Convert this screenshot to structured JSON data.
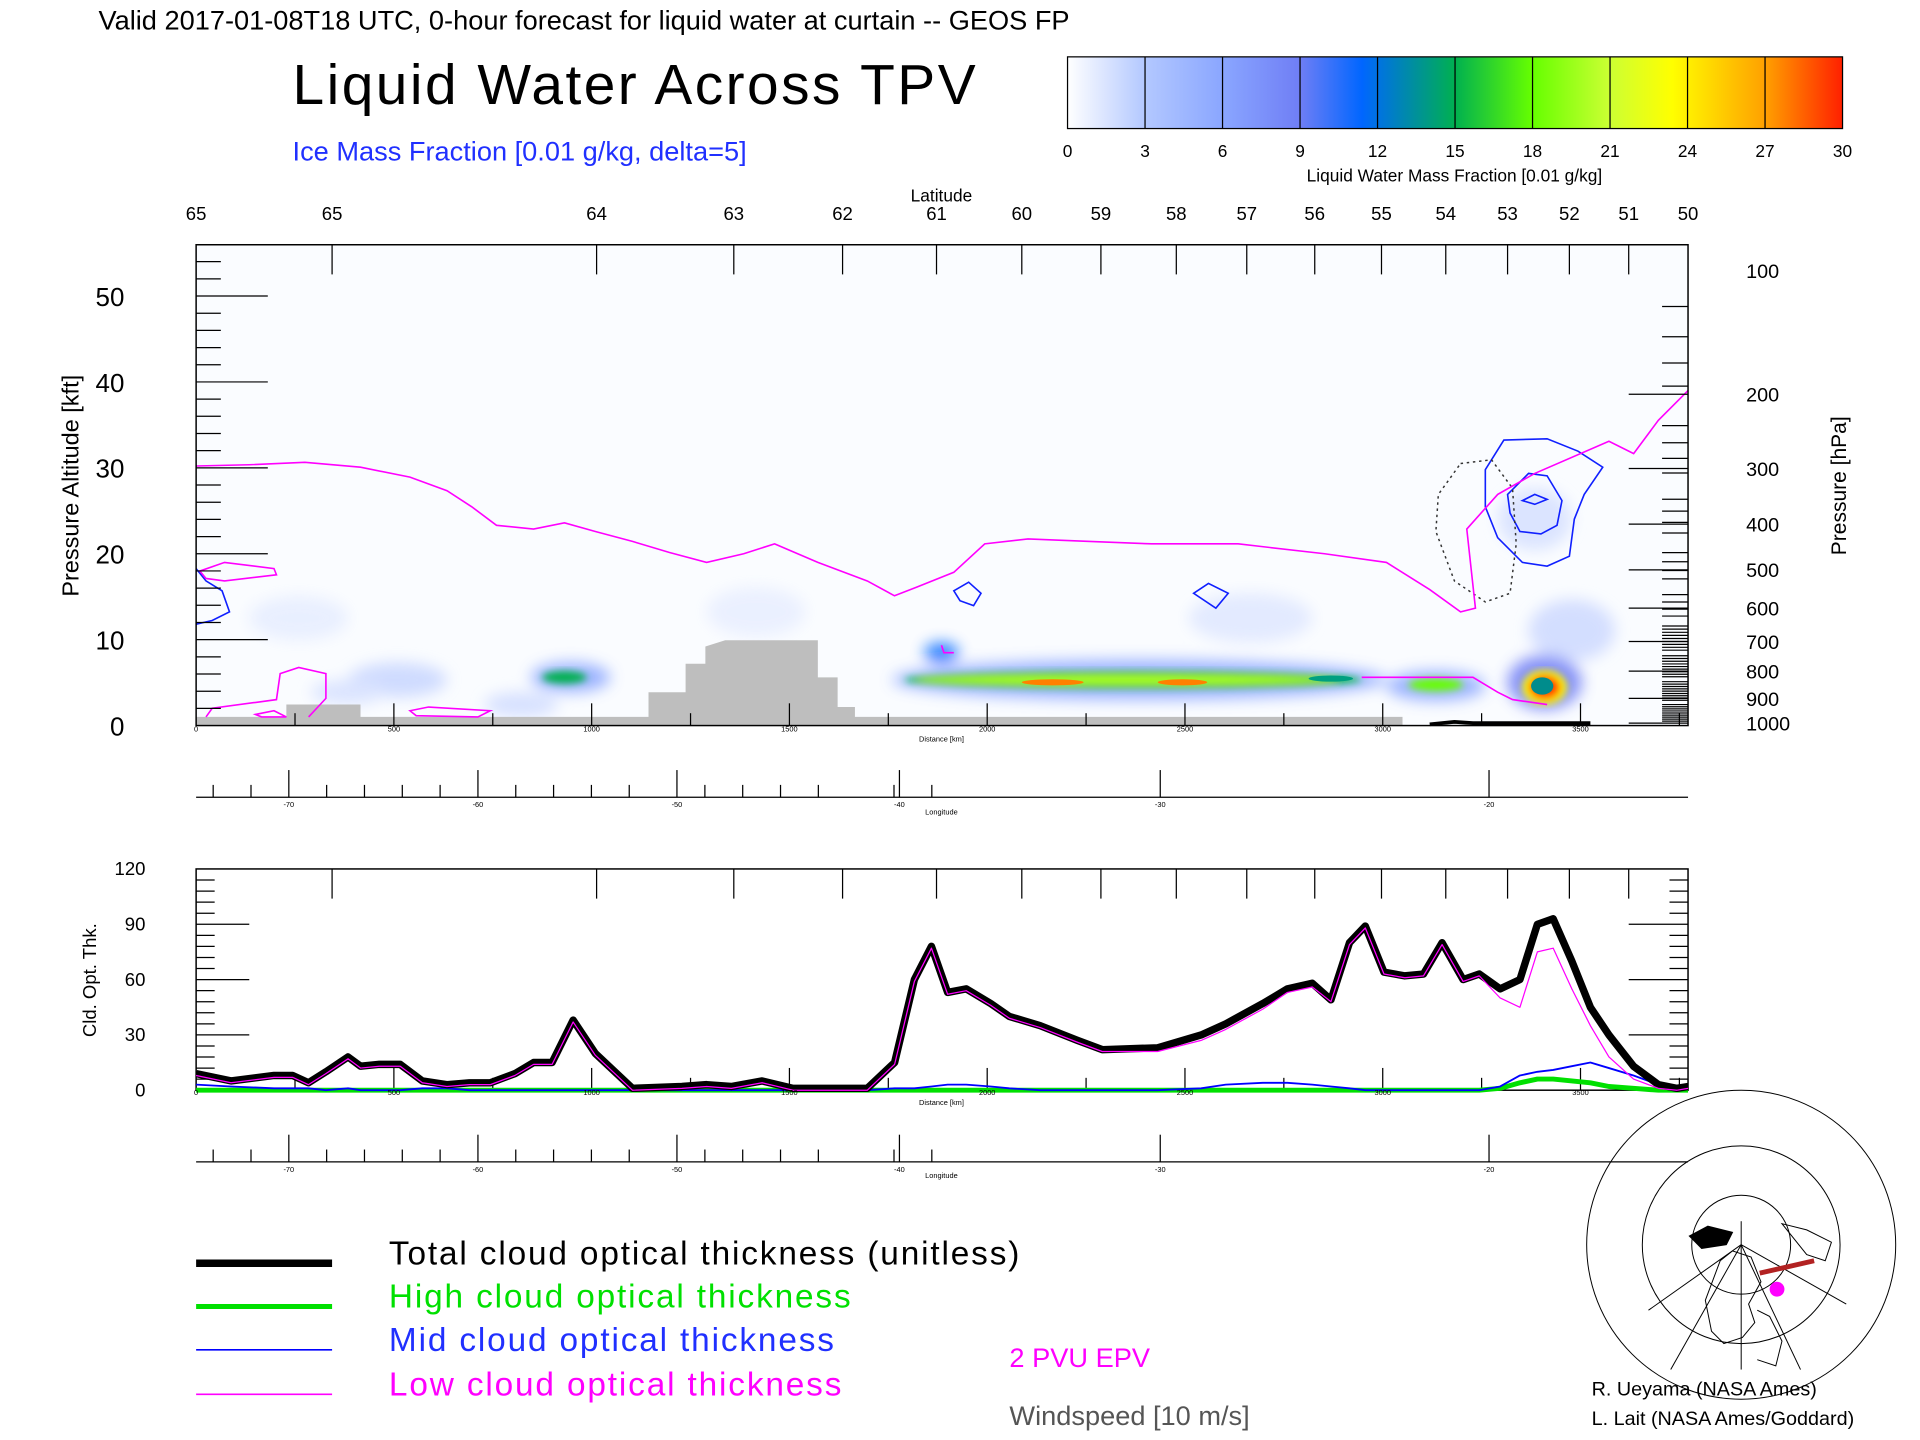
{
  "header": {
    "valid_line": "Valid 2017-01-08T18 UTC, 0-hour forecast for liquid water at curtain -- GEOS FP",
    "title": "Liquid Water Across TPV",
    "subtitle": "Ice Mass Fraction [0.01 g/kg, delta=5]"
  },
  "colorbar": {
    "labels": [
      "0",
      "3",
      "6",
      "9",
      "12",
      "15",
      "18",
      "21",
      "24",
      "27",
      "30"
    ],
    "title": "Liquid Water Mass Fraction [0.01 g/kg]",
    "colors": [
      "#ffffff",
      "#b3c8ff",
      "#8aa6ff",
      "#6f7ef5",
      "#0066ff",
      "#00b050",
      "#66ff00",
      "#ccff33",
      "#ffff00",
      "#ffb000",
      "#ff2000"
    ]
  },
  "upper_panel": {
    "latitude_title": "Latitude",
    "latitude_labels": [
      "65",
      "65",
      "64",
      "63",
      "62",
      "61",
      "60",
      "59",
      "58",
      "57",
      "56",
      "55",
      "54",
      "53",
      "52",
      "51",
      "50"
    ],
    "left_axis_title": "Pressure Altitude [kft]",
    "left_labels": [
      "0",
      "10",
      "20",
      "30",
      "40",
      "50"
    ],
    "right_axis_title": "Pressure [hPa]",
    "right_labels": [
      "100",
      "200",
      "300",
      "400",
      "500",
      "600",
      "700",
      "800",
      "900",
      "1000"
    ],
    "distance_labels": [
      "0",
      "500",
      "1000",
      "1500",
      "2000",
      "2500",
      "3000",
      "3500"
    ],
    "distance_title": "Distance [km]",
    "longitude_labels": [
      "-70",
      "-60",
      "-50",
      "-40",
      "-30",
      "-20"
    ],
    "longitude_title": "Longitude"
  },
  "chart_data": {
    "type": "line",
    "title": "",
    "ylabel": "Cld. Opt. Thk.",
    "xlabel": "Distance [km]",
    "ylim": [
      0,
      120
    ],
    "xlim": [
      0,
      3772
    ],
    "y_ticks": [
      "0",
      "30",
      "60",
      "90",
      "120"
    ],
    "x_ticks": [
      "0",
      "500",
      "1000",
      "1500",
      "2000",
      "2500",
      "3000",
      "3500"
    ],
    "longitude_ticks": [
      "-70",
      "-60",
      "-50",
      "-40",
      "-30",
      "-20"
    ],
    "longitude_title": "Longitude",
    "x": [
      0,
      88,
      197,
      244,
      284,
      328,
      384,
      416,
      463,
      516,
      572,
      634,
      691,
      744,
      806,
      853,
      900,
      953,
      1009,
      1103,
      1228,
      1291,
      1353,
      1431,
      1509,
      1697,
      1766,
      1816,
      1859,
      1900,
      1947,
      2009,
      2056,
      2134,
      2228,
      2291,
      2431,
      2541,
      2603,
      2697,
      2759,
      2822,
      2869,
      2916,
      2956,
      3003,
      3056,
      3103,
      3150,
      3203,
      3244,
      3297,
      3347,
      3391,
      3431,
      3478,
      3525,
      3572,
      3634,
      3697,
      3744,
      3772
    ],
    "series": [
      {
        "name": "Total cloud optical thickness (unitless)",
        "color": "#000000",
        "values": [
          9,
          5,
          8,
          8,
          4,
          10,
          18,
          13,
          14,
          14,
          5,
          3,
          4,
          4,
          9,
          15,
          15,
          38,
          20,
          1,
          2,
          3,
          2,
          5,
          1,
          1,
          15,
          60,
          78,
          53,
          55,
          47,
          40,
          35,
          27,
          22,
          23,
          30,
          36,
          47,
          55,
          58,
          49,
          80,
          89,
          64,
          62,
          63,
          80,
          60,
          63,
          55,
          60,
          90,
          93,
          70,
          45,
          30,
          13,
          3,
          1,
          2
        ]
      },
      {
        "name": "High cloud optical thickness",
        "color": "#00e000",
        "values": [
          0,
          0,
          0,
          0,
          0,
          0,
          0,
          0,
          0,
          0,
          0,
          0,
          0,
          0,
          0,
          0,
          0,
          0,
          0,
          0,
          0,
          0,
          0,
          0,
          0,
          0,
          0,
          0,
          0,
          0,
          0,
          0,
          0,
          0,
          0,
          0,
          0,
          0,
          0,
          0,
          0,
          0,
          0,
          0,
          0,
          0,
          0,
          0,
          0,
          0,
          0,
          1,
          4,
          6,
          6,
          5,
          4,
          2,
          1,
          0,
          0,
          0
        ]
      },
      {
        "name": "Mid cloud optical thickness",
        "color": "#0000ff",
        "values": [
          3,
          2,
          1,
          1,
          1,
          0,
          1,
          0,
          0,
          0,
          1,
          1,
          0,
          0,
          0,
          0,
          0,
          0,
          0,
          0,
          0,
          0,
          0,
          0,
          0,
          0,
          1,
          1,
          2,
          3,
          3,
          2,
          1,
          0,
          0,
          0,
          0,
          1,
          3,
          4,
          4,
          3,
          2,
          1,
          0,
          0,
          0,
          0,
          0,
          0,
          0,
          2,
          8,
          10,
          11,
          13,
          15,
          12,
          8,
          3,
          1,
          1
        ]
      },
      {
        "name": "Low cloud optical thickness",
        "color": "#ff00ff",
        "values": [
          8,
          4,
          7,
          7,
          3,
          9,
          17,
          12,
          13,
          13,
          4,
          2,
          3,
          3,
          8,
          14,
          14,
          37,
          19,
          0,
          1,
          2,
          1,
          4,
          0,
          0,
          14,
          59,
          77,
          52,
          54,
          46,
          39,
          34,
          26,
          21,
          21,
          27,
          33,
          44,
          53,
          56,
          48,
          79,
          88,
          63,
          61,
          62,
          79,
          59,
          62,
          50,
          45,
          75,
          77,
          55,
          35,
          18,
          6,
          1,
          0,
          1
        ]
      }
    ]
  },
  "legend": {
    "items": [
      {
        "label": "Total cloud optical thickness (unitless)",
        "color": "#000000"
      },
      {
        "label": "High cloud optical thickness",
        "color": "#00e000"
      },
      {
        "label": "Mid cloud optical thickness",
        "color": "#0000ff"
      },
      {
        "label": "Low cloud optical thickness",
        "color": "#ff00ff"
      }
    ],
    "epv_label": "2 PVU EPV",
    "wind_label": "Windspeed [10 m/s]"
  },
  "credits": {
    "line1": "R. Ueyama (NASA Ames)",
    "line2": "L. Lait (NASA Ames/Goddard)"
  }
}
